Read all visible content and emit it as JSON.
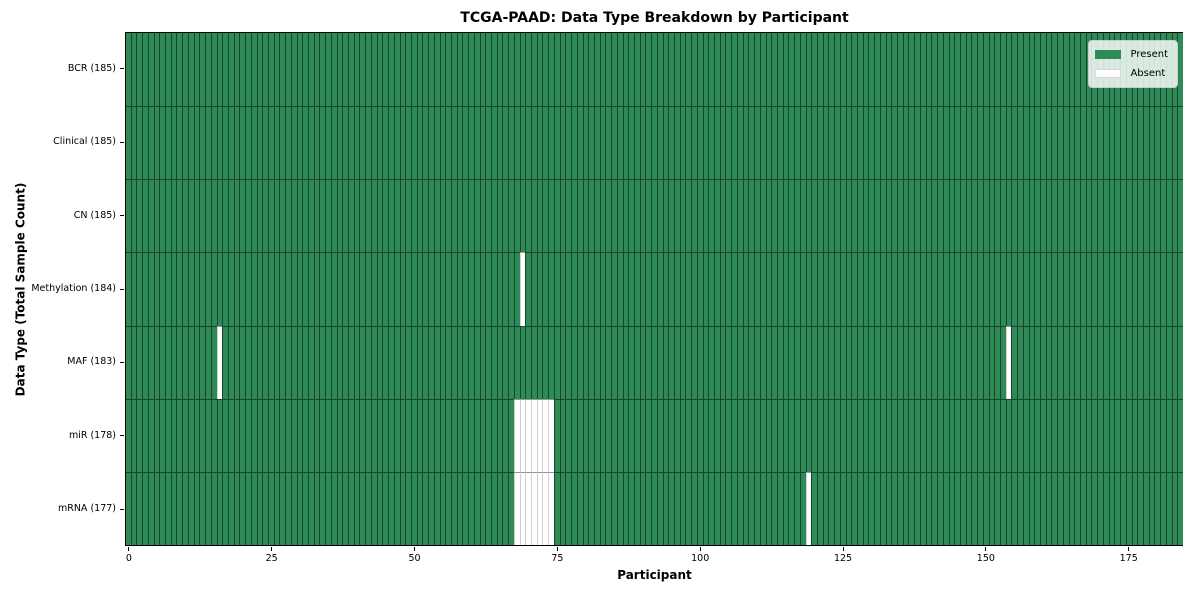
{
  "chart_data": {
    "type": "heatmap",
    "title": "TCGA-PAAD: Data Type Breakdown by Participant",
    "xlabel": "Participant",
    "ylabel": "Data Type (Total Sample Count)",
    "n_participants": 185,
    "x_ticks": [
      0,
      25,
      50,
      75,
      100,
      125,
      150,
      175
    ],
    "rows": [
      {
        "name": "BCR",
        "label": "BCR (185)",
        "total": 185,
        "absent": []
      },
      {
        "name": "Clinical",
        "label": "Clinical (185)",
        "total": 185,
        "absent": []
      },
      {
        "name": "CN",
        "label": "CN (185)",
        "total": 185,
        "absent": []
      },
      {
        "name": "Methylation",
        "label": "Methylation (184)",
        "total": 184,
        "absent": [
          69
        ]
      },
      {
        "name": "MAF",
        "label": "MAF (183)",
        "total": 183,
        "absent": [
          16,
          154
        ]
      },
      {
        "name": "miR",
        "label": "miR (178)",
        "total": 178,
        "absent": [
          68,
          69,
          70,
          71,
          72,
          73,
          74
        ]
      },
      {
        "name": "mRNA",
        "label": "mRNA (177)",
        "total": 177,
        "absent": [
          68,
          69,
          70,
          71,
          72,
          73,
          74,
          119
        ]
      }
    ],
    "legend": [
      {
        "label": "Present",
        "color": "#2e8b57"
      },
      {
        "label": "Absent",
        "color": "#ffffff"
      }
    ],
    "colors": {
      "present": "#2e8b57",
      "absent": "#ffffff"
    },
    "legend_position": "upper-right",
    "axis_style": "boxed-black-spines"
  }
}
